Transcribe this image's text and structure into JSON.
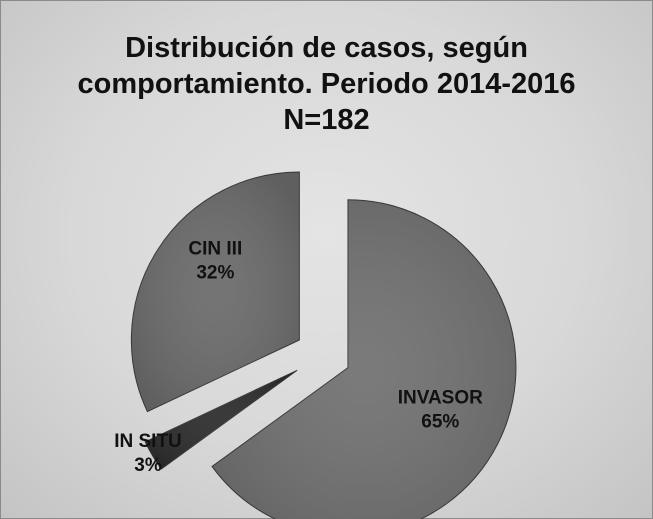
{
  "title_lines": [
    "Distribución de casos, según",
    "comportamiento. Periodo 2014-2016",
    "N=182"
  ],
  "chart_data": {
    "type": "pie",
    "title": "Distribución de casos, según comportamiento. Periodo 2014-2016 N=182",
    "slices": [
      {
        "label": "INVASOR",
        "percent_label": "65%",
        "value": 65
      },
      {
        "label": "IN SITU",
        "percent_label": "3%",
        "value": 3
      },
      {
        "label": "CIN III",
        "percent_label": "32%",
        "value": 32
      }
    ],
    "colors": [
      "#727272",
      "#2e2e2e",
      "#6c6c6c"
    ],
    "exploded": true,
    "legend": "none"
  }
}
